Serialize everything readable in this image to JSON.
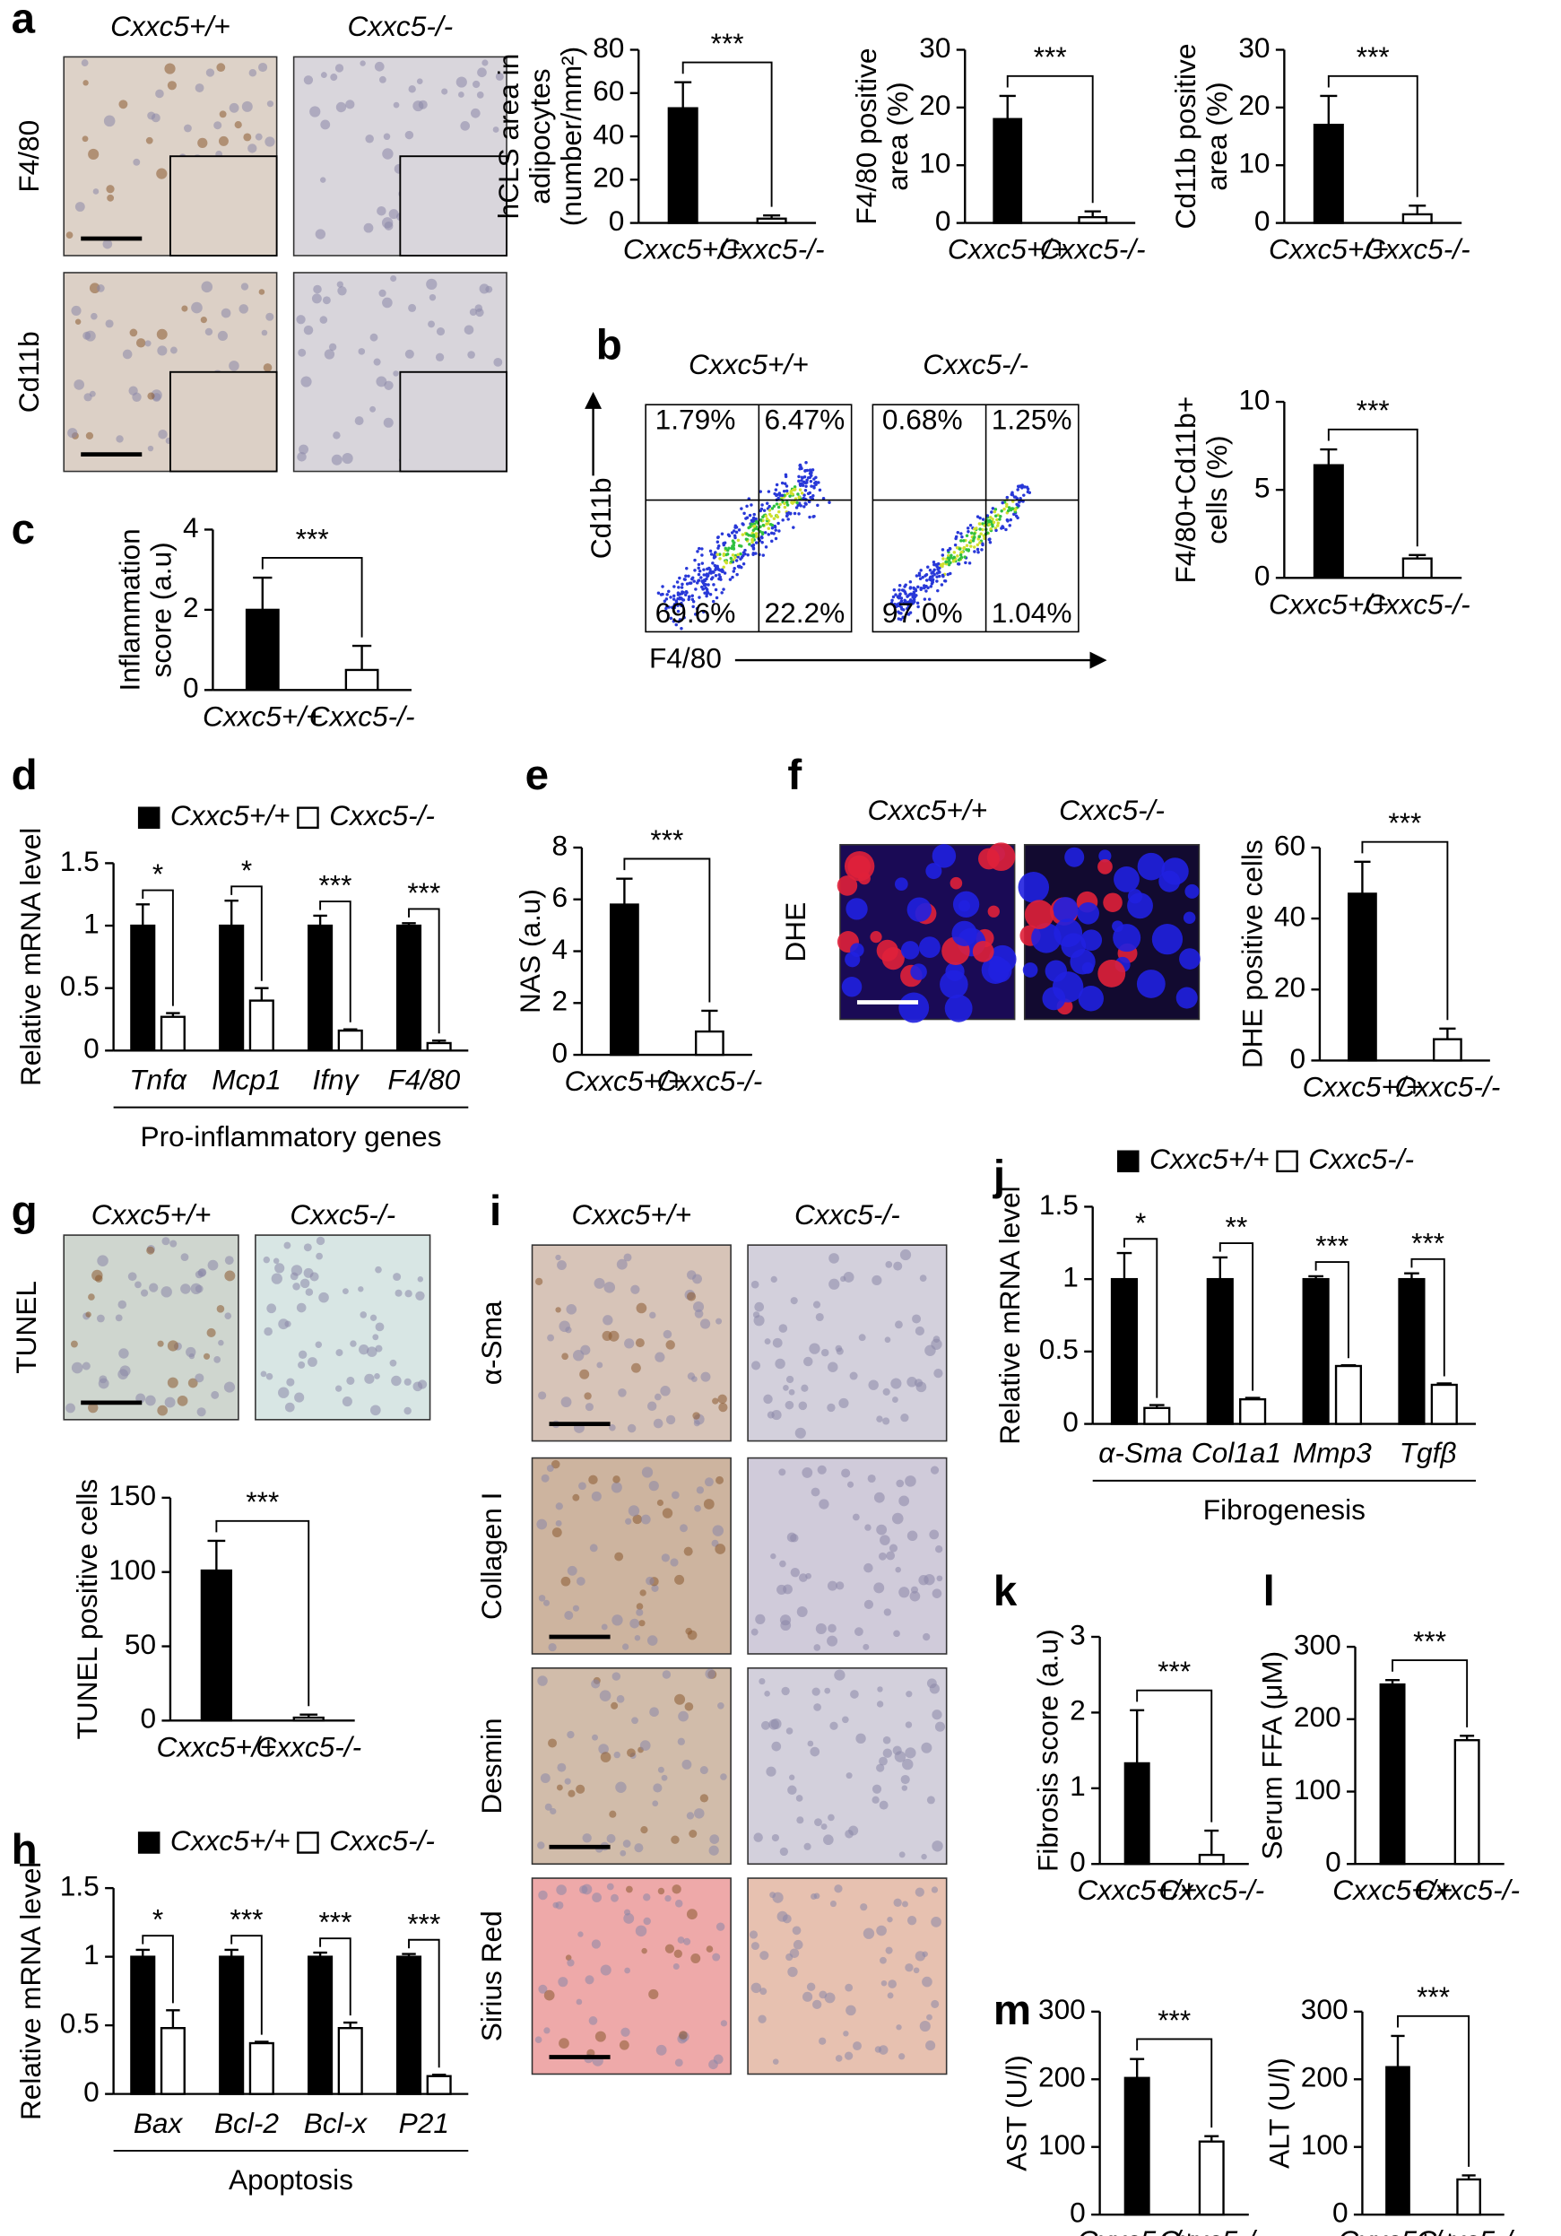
{
  "panel_letters": [
    "a",
    "b",
    "c",
    "d",
    "e",
    "f",
    "g",
    "h",
    "i",
    "j",
    "k",
    "l",
    "m"
  ],
  "micrographs": [
    {
      "columns": [
        "Cxxc5+/+",
        "Cxxc5-/-"
      ],
      "rows": [
        "F4/80",
        "Cd11b"
      ]
    },
    {
      "columns": [
        "Cxxc5+/+",
        "Cxxc5-/-"
      ],
      "rows": [
        "DHE"
      ]
    },
    {
      "columns": [
        "Cxxc5+/+",
        "Cxxc5-/-"
      ],
      "rows": [
        "TUNEL"
      ]
    },
    {
      "columns": [
        "Cxxc5+/+",
        "Cxxc5-/-"
      ],
      "rows": [
        "α-Sma",
        "Collagen I",
        "Desmin",
        "Sirius Red"
      ]
    }
  ],
  "flow": {
    "columns": [
      "Cxxc5+/+",
      "Cxxc5-/-"
    ],
    "y_label": "Cd11b",
    "x_label": "F4/80",
    "quadrants": [
      [
        "1.79%",
        "6.47%",
        "69.6%",
        "22.2%"
      ],
      [
        "0.68%",
        "1.25%",
        "97.0%",
        "1.04%"
      ]
    ]
  },
  "chart_data": [
    {
      "type": "bar",
      "ylabel": [
        "hCLS area in",
        "adipocytes",
        "(number/mm²)"
      ],
      "categories": [
        "Cxxc5+/+",
        "Cxxc5-/-"
      ],
      "values": [
        53,
        2
      ],
      "errors": [
        12,
        1.5
      ],
      "colors": [
        "#000000",
        "#ffffff"
      ],
      "ylim": [
        0,
        80
      ],
      "yticks": [
        0,
        20,
        40,
        60,
        80
      ],
      "significance": "***"
    },
    {
      "type": "bar",
      "ylabel": [
        "F4/80 positive",
        "area (%)"
      ],
      "categories": [
        "Cxxc5+/+",
        "Cxxc5-/-"
      ],
      "values": [
        18,
        1
      ],
      "errors": [
        4,
        1
      ],
      "colors": [
        "#000000",
        "#ffffff"
      ],
      "ylim": [
        0,
        30
      ],
      "yticks": [
        0,
        10,
        20,
        30
      ],
      "significance": "***"
    },
    {
      "type": "bar",
      "ylabel": [
        "Cd11b positive",
        "area (%)"
      ],
      "categories": [
        "Cxxc5+/+",
        "Cxxc5-/-"
      ],
      "values": [
        17,
        1.5
      ],
      "errors": [
        5,
        1.5
      ],
      "colors": [
        "#000000",
        "#ffffff"
      ],
      "ylim": [
        0,
        30
      ],
      "yticks": [
        0,
        10,
        20,
        30
      ],
      "significance": "***"
    },
    {
      "type": "bar",
      "ylabel": [
        "F4/80+Cd11b+",
        "cells (%)"
      ],
      "categories": [
        "Cxxc5+/+",
        "Cxxc5-/-"
      ],
      "values": [
        6.4,
        1.1
      ],
      "errors": [
        0.9,
        0.2
      ],
      "colors": [
        "#000000",
        "#ffffff"
      ],
      "ylim": [
        0,
        10
      ],
      "yticks": [
        0,
        5,
        10
      ],
      "significance": "***"
    },
    {
      "type": "bar",
      "ylabel": [
        "Inflammation",
        "score (a.u)"
      ],
      "categories": [
        "Cxxc5+/+",
        "Cxxc5-/-"
      ],
      "values": [
        2,
        0.5
      ],
      "errors": [
        0.8,
        0.6
      ],
      "colors": [
        "#000000",
        "#ffffff"
      ],
      "ylim": [
        0,
        4
      ],
      "yticks": [
        0,
        2,
        4
      ],
      "significance": "***"
    },
    {
      "type": "grouped_bar",
      "ylabel": [
        "Relative mRNA level"
      ],
      "categories": [
        "Tnfα",
        "Mcp1",
        "Ifnγ",
        "F4/80"
      ],
      "series": [
        {
          "name": "Cxxc5+/+",
          "color": "#000000",
          "values": [
            1,
            1,
            1,
            1
          ],
          "errors": [
            0.17,
            0.2,
            0.08,
            0.02
          ]
        },
        {
          "name": "Cxxc5-/-",
          "color": "#ffffff",
          "values": [
            0.27,
            0.4,
            0.16,
            0.06
          ],
          "errors": [
            0.03,
            0.1,
            0.01,
            0.02
          ]
        }
      ],
      "ylim": [
        0,
        1.5
      ],
      "yticks": [
        0,
        0.5,
        1,
        1.5
      ],
      "significance": [
        "*",
        "*",
        "***",
        "***"
      ],
      "group_label": "Pro-inflammatory genes"
    },
    {
      "type": "bar",
      "ylabel": [
        "NAS (a.u)"
      ],
      "categories": [
        "Cxxc5+/+",
        "Cxxc5-/-"
      ],
      "values": [
        5.8,
        0.9
      ],
      "errors": [
        1,
        0.8
      ],
      "colors": [
        "#000000",
        "#ffffff"
      ],
      "ylim": [
        0,
        8
      ],
      "yticks": [
        0,
        2,
        4,
        6,
        8
      ],
      "significance": "***"
    },
    {
      "type": "bar",
      "ylabel": [
        "DHE positive cells"
      ],
      "categories": [
        "Cxxc5+/+",
        "Cxxc5-/-"
      ],
      "values": [
        47,
        6
      ],
      "errors": [
        9,
        3
      ],
      "colors": [
        "#000000",
        "#ffffff"
      ],
      "ylim": [
        0,
        60
      ],
      "yticks": [
        0,
        20,
        40,
        60
      ],
      "significance": "***"
    },
    {
      "type": "bar",
      "ylabel": [
        "TUNEL positive cells"
      ],
      "categories": [
        "Cxxc5+/+",
        "Cxxc5-/-"
      ],
      "values": [
        101,
        2
      ],
      "errors": [
        20,
        2
      ],
      "colors": [
        "#000000",
        "#ffffff"
      ],
      "ylim": [
        0,
        150
      ],
      "yticks": [
        0,
        50,
        100,
        150
      ],
      "significance": "***"
    },
    {
      "type": "grouped_bar",
      "ylabel": [
        "Relative mRNA level"
      ],
      "categories": [
        "Bax",
        "Bcl-2",
        "Bcl-x",
        "P21"
      ],
      "series": [
        {
          "name": "Cxxc5+/+",
          "color": "#000000",
          "values": [
            1,
            1,
            1,
            1
          ],
          "errors": [
            0.05,
            0.05,
            0.03,
            0.02
          ]
        },
        {
          "name": "Cxxc5-/-",
          "color": "#ffffff",
          "values": [
            0.48,
            0.37,
            0.48,
            0.13
          ],
          "errors": [
            0.13,
            0.01,
            0.04,
            0.01
          ]
        }
      ],
      "ylim": [
        0,
        1.5
      ],
      "yticks": [
        0,
        0.5,
        1,
        1.5
      ],
      "significance": [
        "*",
        "***",
        "***",
        "***"
      ],
      "group_label": "Apoptosis"
    },
    {
      "type": "grouped_bar",
      "ylabel": [
        "Relative mRNA level"
      ],
      "categories": [
        "α-Sma",
        "Col1a1",
        "Mmp3",
        "Tgfβ"
      ],
      "series": [
        {
          "name": "Cxxc5+/+",
          "color": "#000000",
          "values": [
            1,
            1,
            1,
            1
          ],
          "errors": [
            0.18,
            0.15,
            0.02,
            0.04
          ]
        },
        {
          "name": "Cxxc5-/-",
          "color": "#ffffff",
          "values": [
            0.11,
            0.17,
            0.4,
            0.27
          ],
          "errors": [
            0.02,
            0.01,
            0.005,
            0.01
          ]
        }
      ],
      "ylim": [
        0,
        1.5
      ],
      "yticks": [
        0,
        0.5,
        1,
        1.5
      ],
      "significance": [
        "*",
        "**",
        "***",
        "***"
      ],
      "group_label": "Fibrogenesis"
    },
    {
      "type": "bar",
      "ylabel": [
        "Fibrosis score (a.u)"
      ],
      "categories": [
        "Cxxc5+/+",
        "Cxxc5-/-"
      ],
      "values": [
        1.33,
        0.12
      ],
      "errors": [
        0.7,
        0.32
      ],
      "colors": [
        "#000000",
        "#ffffff"
      ],
      "ylim": [
        0,
        3
      ],
      "yticks": [
        0,
        1,
        2,
        3
      ],
      "significance": "***"
    },
    {
      "type": "bar",
      "ylabel": [
        "Serum FFA (μM)"
      ],
      "categories": [
        "Cxxc5+/+",
        "Cxxc5-/-"
      ],
      "values": [
        248,
        171
      ],
      "errors": [
        6,
        6
      ],
      "colors": [
        "#000000",
        "#ffffff"
      ],
      "ylim": [
        0,
        300
      ],
      "yticks": [
        0,
        100,
        200,
        300
      ],
      "significance": "***"
    },
    {
      "type": "bar",
      "ylabel": [
        "AST (U/l)"
      ],
      "categories": [
        "Cxxc5+/+",
        "Cxxc5-/-"
      ],
      "values": [
        202,
        108
      ],
      "errors": [
        28,
        8
      ],
      "colors": [
        "#000000",
        "#ffffff"
      ],
      "ylim": [
        0,
        300
      ],
      "yticks": [
        0,
        100,
        200,
        300
      ],
      "significance": "***"
    },
    {
      "type": "bar",
      "ylabel": [
        "ALT (U/l)"
      ],
      "categories": [
        "Cxxc5+/+",
        "Cxxc5-/-"
      ],
      "values": [
        218,
        52
      ],
      "errors": [
        46,
        6
      ],
      "colors": [
        "#000000",
        "#ffffff"
      ],
      "ylim": [
        0,
        300
      ],
      "yticks": [
        0,
        100,
        200,
        300
      ],
      "significance": "***"
    }
  ]
}
